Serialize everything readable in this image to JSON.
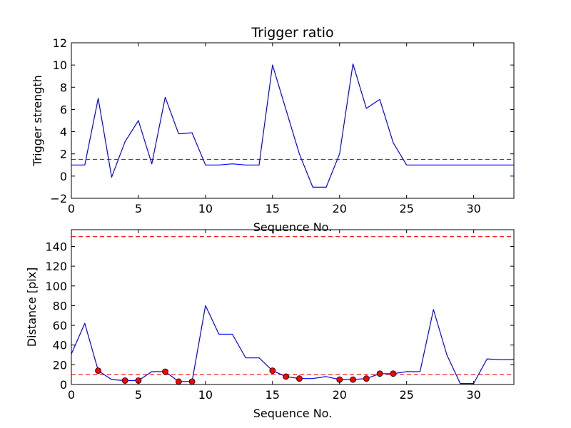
{
  "chart_data": [
    {
      "type": "line",
      "title": "Trigger ratio",
      "xlabel": "Sequence No.",
      "ylabel": "Trigger strength",
      "xlim": [
        0,
        33
      ],
      "ylim": [
        -2,
        12
      ],
      "xticks": [
        0,
        5,
        10,
        15,
        20,
        25,
        30
      ],
      "yticks": [
        -2,
        0,
        2,
        4,
        6,
        8,
        10,
        12
      ],
      "grid": false,
      "series": [
        {
          "color": "#0000ff",
          "style": "solid",
          "x": [
            0,
            1,
            2,
            3,
            4,
            5,
            6,
            7,
            8,
            9,
            10,
            11,
            12,
            13,
            14,
            15,
            16,
            17,
            18,
            19,
            20,
            21,
            22,
            23,
            24,
            25,
            26,
            27,
            28,
            29,
            30,
            31,
            32,
            33
          ],
          "y": [
            1,
            1,
            7,
            -0.1,
            3.1,
            5,
            1.1,
            7.1,
            3.8,
            3.9,
            1,
            1,
            1.1,
            1,
            1,
            10,
            6,
            2,
            -1,
            -1,
            2,
            10.1,
            6.1,
            6.9,
            3,
            1,
            1,
            1,
            1,
            1,
            1,
            1,
            1,
            1
          ]
        }
      ],
      "hlines": [
        {
          "y": 1.5,
          "color": "#ff0000",
          "style": "dashed"
        }
      ]
    },
    {
      "type": "line",
      "title": "",
      "xlabel": "Sequence No.",
      "ylabel": "Distance [pix]",
      "xlim": [
        0,
        33
      ],
      "ylim": [
        0,
        157
      ],
      "xticks": [
        0,
        5,
        10,
        15,
        20,
        25,
        30
      ],
      "yticks": [
        0,
        20,
        40,
        60,
        80,
        100,
        120,
        140
      ],
      "grid": false,
      "series": [
        {
          "color": "#0000ff",
          "style": "solid",
          "x": [
            0,
            1,
            2,
            3,
            4,
            5,
            6,
            7,
            8,
            9,
            10,
            11,
            12,
            13,
            14,
            15,
            16,
            17,
            18,
            19,
            20,
            21,
            22,
            23,
            24,
            25,
            26,
            27,
            28,
            29,
            30,
            31,
            32,
            33
          ],
          "y": [
            31,
            62,
            14,
            5,
            4,
            4,
            13,
            13,
            3,
            3,
            80,
            51,
            51,
            27,
            27,
            14,
            8,
            6,
            6,
            8,
            5,
            5,
            6,
            11,
            11,
            13,
            13,
            76,
            30,
            1,
            1,
            26,
            25,
            25
          ]
        }
      ],
      "markers": {
        "color": "#ff0000",
        "edge": "#000000",
        "x": [
          2,
          4,
          5,
          7,
          8,
          9,
          15,
          16,
          17,
          20,
          21,
          22,
          23,
          24
        ],
        "y": [
          14,
          4,
          4,
          13,
          3,
          3,
          14,
          8,
          6,
          5,
          5,
          6,
          11,
          11
        ]
      },
      "hlines": [
        {
          "y": 150,
          "color": "#ff0000",
          "style": "dashed"
        },
        {
          "y": 10,
          "color": "#ff0000",
          "style": "dashed"
        }
      ]
    }
  ]
}
